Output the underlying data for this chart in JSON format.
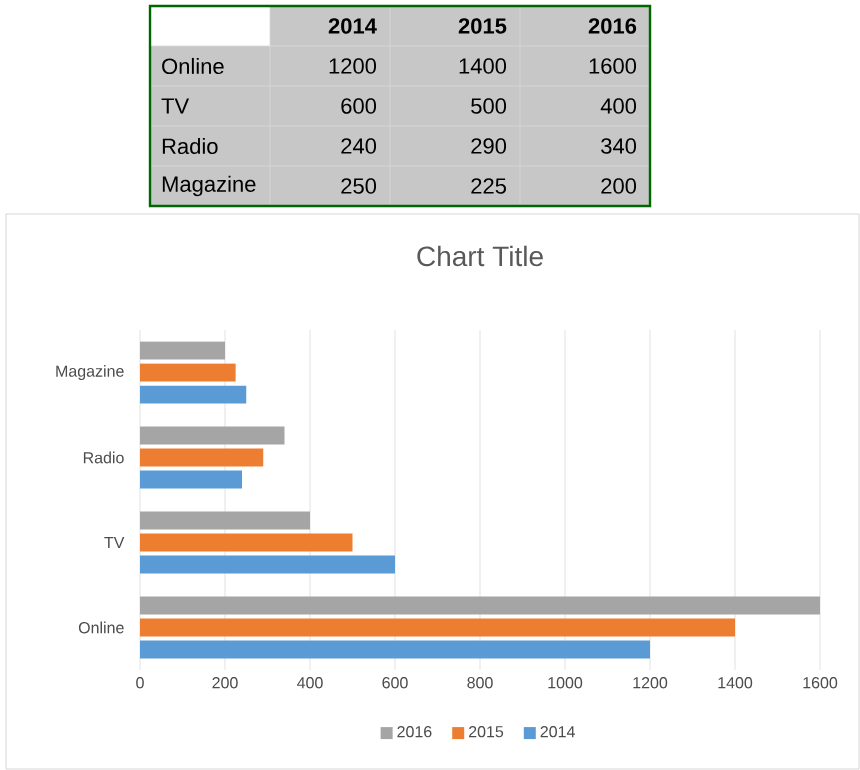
{
  "chart_data": [
    {
      "type": "other",
      "annotations": [
        "2014",
        "2015",
        "2016",
        "Online",
        "1200",
        "1400",
        "1600",
        "TV",
        "600",
        "500",
        "400",
        "Radio",
        "240",
        "290",
        "340",
        "Magazine",
        "250",
        "225",
        "200"
      ]
    },
    {
      "type": "bar",
      "orientation": "horizontal",
      "title": "Chart Title",
      "categories": [
        "Magazine",
        "Radio",
        "TV",
        "Online"
      ],
      "series": [
        {
          "name": "2014",
          "color": "#5b9bd5",
          "values": [
            250,
            240,
            600,
            1200
          ]
        },
        {
          "name": "2015",
          "color": "#ed7d31",
          "values": [
            225,
            290,
            500,
            1400
          ]
        },
        {
          "name": "2016",
          "color": "#a5a5a5",
          "values": [
            200,
            340,
            400,
            1600
          ]
        }
      ],
      "xlim": [
        0,
        1600
      ],
      "xticks": [
        0,
        200,
        400,
        600,
        800,
        1000,
        1200,
        1400,
        1600
      ],
      "grid": "x",
      "legend": "bottom"
    }
  ]
}
